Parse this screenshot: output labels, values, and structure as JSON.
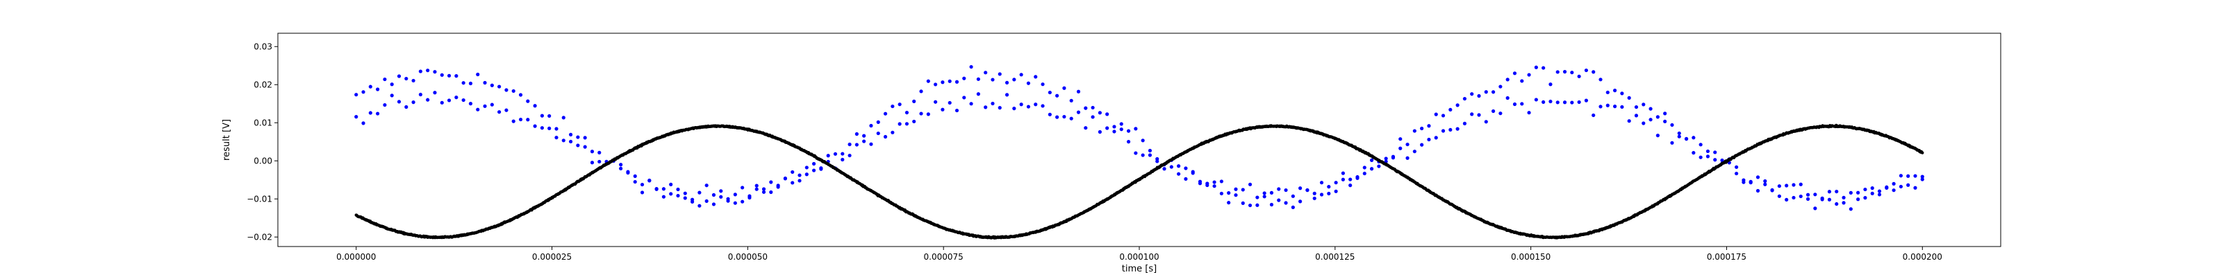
{
  "chart_data": {
    "type": "scatter",
    "xlabel": "time [s]",
    "ylabel": "result [V]",
    "xlim": [
      -1e-05,
      0.00021
    ],
    "ylim": [
      -0.0225,
      0.0335
    ],
    "xticks": [
      0.0,
      2.5e-05,
      5e-05,
      7.5e-05,
      0.0001,
      0.000125,
      0.00015,
      0.000175,
      0.0002
    ],
    "xtick_labels": [
      "0.000000",
      "0.000025",
      "0.000050",
      "0.000075",
      "0.000100",
      "0.000125",
      "0.000150",
      "0.000175",
      "0.000200"
    ],
    "yticks": [
      -0.02,
      -0.01,
      0.0,
      0.01,
      0.02,
      0.03
    ],
    "ytick_labels": [
      "−0.02",
      "−0.01",
      "0.00",
      "0.01",
      "0.02",
      "0.03"
    ],
    "grid": false,
    "legend": "none",
    "colors": {
      "blue": "#0000ff",
      "black": "#000000"
    },
    "series": [
      {
        "color": "blue",
        "marker": "dot",
        "description": "two noisy sinusoidal bands, period ~7.1e-5 s",
        "band_centers_V": [
          0.006,
          0.0035
        ],
        "band_amplitude_V": [
          0.017,
          0.0125
        ],
        "period_s": 7.12e-05,
        "noise_V": 0.0022,
        "points_per_band": 220,
        "x_range": [
          0.0,
          0.0002
        ]
      },
      {
        "color": "black",
        "marker": "dot",
        "description": "dense clean sinusoid",
        "center_V": -0.0055,
        "amplitude_V": 0.0146,
        "period_s": 7.12e-05,
        "phase_min_at_s": 1.05e-05,
        "points": 3000,
        "x_range": [
          0.0,
          0.0002
        ]
      }
    ]
  }
}
